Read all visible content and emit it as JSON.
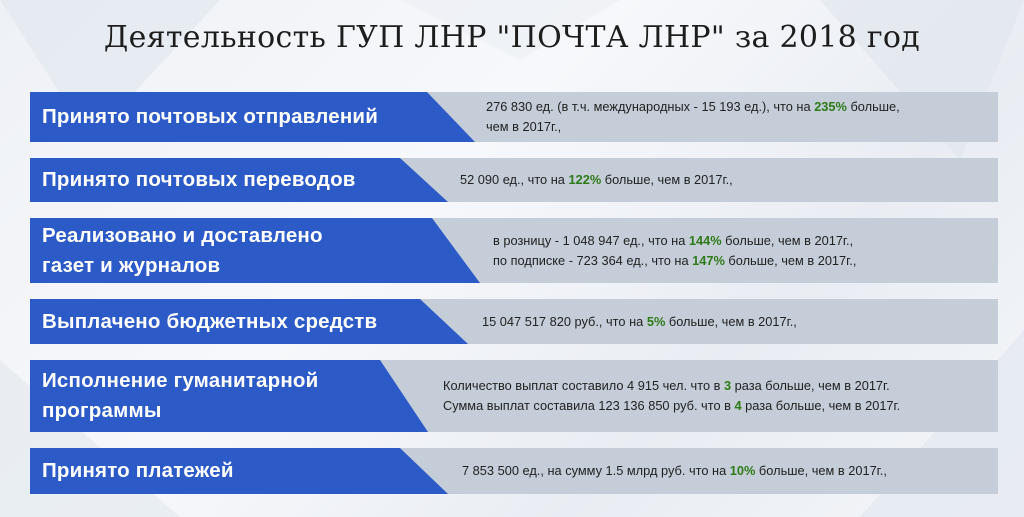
{
  "title": "Деятельность ГУП ЛНР \"ПОЧТА ЛНР\" за 2018 год",
  "rows": [
    {
      "label_lines": [
        "Принято почтовых отправлений"
      ],
      "lines": [
        {
          "pre": "276 830 ед. (в т.ч. международных - 15 193 ед.), что на ",
          "hl": "235%",
          "post": " больше,"
        },
        {
          "pre": "чем в 2017г.,",
          "hl": "",
          "post": ""
        }
      ]
    },
    {
      "label_lines": [
        "Принято почтовых переводов"
      ],
      "lines": [
        {
          "pre": "52 090 ед., что на ",
          "hl": "122%",
          "post": " больше, чем в 2017г.,"
        }
      ]
    },
    {
      "label_lines": [
        "Реализовано и доставлено",
        "газет и журналов"
      ],
      "lines": [
        {
          "pre": "в розницу - 1 048 947 ед., что на ",
          "hl": "144%",
          "post": " больше, чем в 2017г.,"
        },
        {
          "pre": "по подписке - 723 364 ед., что на ",
          "hl": "147%",
          "post": " больше, чем в 2017г.,"
        }
      ]
    },
    {
      "label_lines": [
        "Выплачено бюджетных средств"
      ],
      "lines": [
        {
          "pre": "15 047 517 820 руб., что на ",
          "hl": "5%",
          "post": " больше, чем в 2017г.,"
        }
      ]
    },
    {
      "label_lines": [
        "Исполнение гуманитарной",
        "программы"
      ],
      "lines": [
        {
          "pre": "Количество выплат составило 4 915 чел. что в ",
          "hl": "3",
          "post": " раза больше, чем в 2017г."
        },
        {
          "pre": "Сумма выплат составила 123 136 850 руб. что в ",
          "hl": "4",
          "post": " раза больше, чем в 2017г."
        }
      ]
    },
    {
      "label_lines": [
        "Принято платежей"
      ],
      "lines": [
        {
          "pre": "7 853 500 ед., на сумму 1.5 млрд руб. что на ",
          "hl": "10%",
          "post": " больше, чем в 2017г.,"
        }
      ]
    }
  ]
}
